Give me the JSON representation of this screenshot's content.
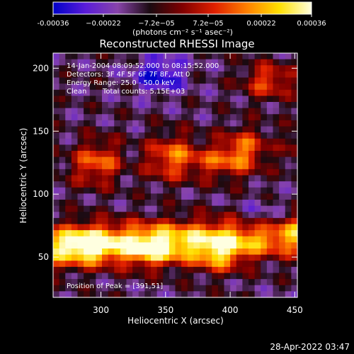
{
  "chart_data": {
    "type": "heatmap",
    "title": "Reconstructed RHESSI Image",
    "xlabel": "Heliocentric X (arcsec)",
    "ylabel": "Heliocentric Y (arcsec)",
    "xlim": [
      263,
      452
    ],
    "ylim": [
      18,
      212
    ],
    "x_ticks": [
      300,
      350,
      400,
      450
    ],
    "y_ticks": [
      50,
      100,
      150,
      200
    ],
    "colorbar": {
      "range": [
        -0.00036,
        0.00036
      ],
      "tick_values": [
        -0.00036,
        -0.00022,
        -7.2e-05,
        7.2e-05,
        0.00022,
        0.00036
      ],
      "tick_labels": [
        "-0.00036",
        "−0.00022",
        "−7.2e−05",
        "7.2e−05",
        "0.00022",
        "0.00036"
      ],
      "units_label": "(photons cm⁻² s⁻¹ asec⁻²)",
      "colors": [
        "#0000c8",
        "#5a1cd8",
        "#8844aa",
        "#1a0a10",
        "#800000",
        "#e02000",
        "#ff8000",
        "#ffe000",
        "#ffffe0"
      ]
    },
    "annotations": {
      "time_range": "14-Jan-2004 08:09:52.000 to 08:15:52.000",
      "detectors": "Detectors: 3F 4F 5F 6F 7F 8F, Att 0",
      "energy": "Energy Range: 25.0 - 50.0 keV",
      "method": "Clean",
      "counts": "Total counts: 5.15E+03",
      "peak": "Position of Peak = [391,51]"
    },
    "intensity_grid": {
      "nx": 40,
      "ny": 40,
      "normalized_range": [
        -1,
        1
      ],
      "bright_regions": [
        {
          "label": "lower-left band",
          "x": 290,
          "y": 60,
          "level": 0.95
        },
        {
          "label": "lower-center band",
          "x": 340,
          "y": 55,
          "level": 0.9
        },
        {
          "label": "peak",
          "x": 391,
          "y": 51,
          "level": 1.0
        },
        {
          "label": "middle ring",
          "x": 385,
          "y": 125,
          "level": 0.7
        },
        {
          "label": "upper-right blob",
          "x": 430,
          "y": 190,
          "level": 0.95
        }
      ],
      "negative_regions": [
        {
          "label": "top blue patch",
          "x": 345,
          "y": 195,
          "level": -0.9
        },
        {
          "label": "right lower patch",
          "x": 425,
          "y": 80,
          "level": -0.6
        }
      ]
    }
  },
  "footer": {
    "timestamp": "28-Apr-2022 03:47"
  }
}
